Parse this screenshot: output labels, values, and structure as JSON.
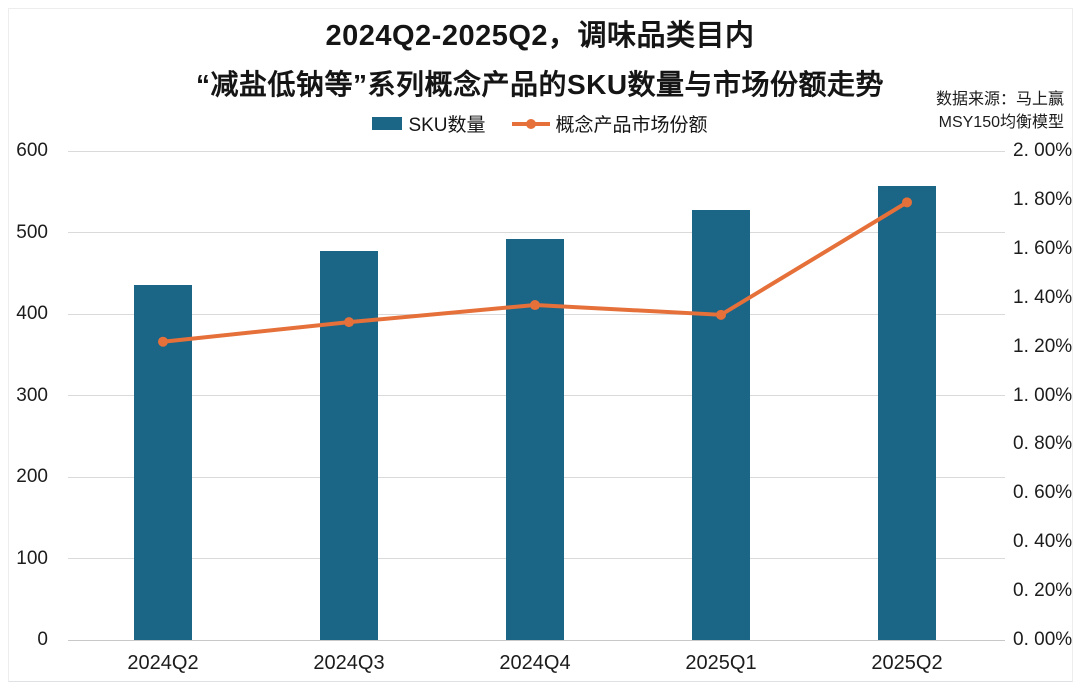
{
  "title": {
    "line1": "2024Q2-2025Q2，调味品类目内",
    "line2": "“减盐低钠等”系列概念产品的SKU数量与市场份额走势"
  },
  "source": {
    "line1": "数据来源：马上赢",
    "line2": "MSY150均衡模型"
  },
  "colors": {
    "bar": "#1B6586",
    "line": "#E6703A",
    "grid": "#DADADA",
    "text": "#1C1C1C"
  },
  "chart_data": {
    "type": "combo-bar-line",
    "categories": [
      "2024Q2",
      "2024Q3",
      "2024Q4",
      "2025Q1",
      "2025Q2"
    ],
    "series": [
      {
        "name": "SKU数量",
        "type": "bar",
        "axis": "left",
        "color": "#1B6586",
        "values": [
          435,
          477,
          492,
          527,
          557
        ]
      },
      {
        "name": "概念产品市场份额",
        "type": "line",
        "axis": "right",
        "color": "#E6703A",
        "values_pct": [
          1.22,
          1.3,
          1.37,
          1.33,
          1.79
        ]
      }
    ],
    "left_axis": {
      "min": 0,
      "max": 600,
      "step": 100,
      "tick_labels": [
        "0",
        "100",
        "200",
        "300",
        "400",
        "500",
        "600"
      ]
    },
    "right_axis": {
      "min": 0,
      "max": 2,
      "step": 0.2,
      "tick_labels": [
        "0. 00%",
        "0. 20%",
        "0. 40%",
        "0. 60%",
        "0. 80%",
        "1. 00%",
        "1. 20%",
        "1. 40%",
        "1. 60%",
        "1. 80%",
        "2. 00%"
      ]
    },
    "grid": true,
    "legend_position": "top-center"
  }
}
